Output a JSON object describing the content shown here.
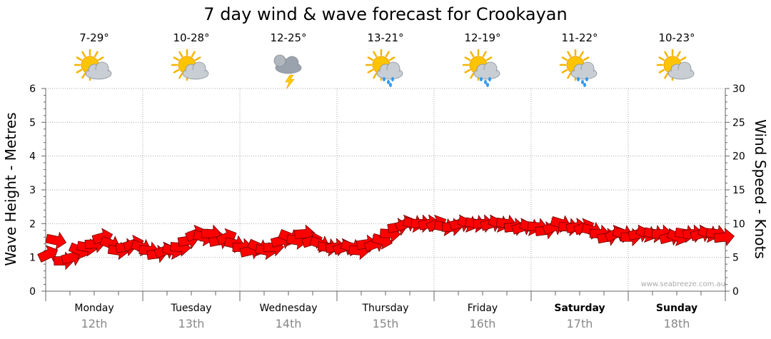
{
  "chart_data": {
    "type": "line",
    "title": "7 day wind & wave forecast for Crookayan",
    "ylabel_left": "Wave Height - Metres",
    "ylabel_right": "Wind Speed - Knots",
    "ylim_left": [
      0,
      6
    ],
    "ylim_right": [
      0,
      30
    ],
    "yticks_left": [
      "0",
      "1",
      "2",
      "3",
      "4",
      "5",
      "6"
    ],
    "yticks_right": [
      "0",
      "5",
      "10",
      "15",
      "20",
      "25",
      "30"
    ],
    "grid": true,
    "watermark": "www.seabreeze.com.au",
    "days": [
      {
        "day": "Monday",
        "date": "12th",
        "temp": "7-29°",
        "icon": "partly-cloudy-icon",
        "bold": false
      },
      {
        "day": "Tuesday",
        "date": "13th",
        "temp": "10-28°",
        "icon": "partly-cloudy-icon",
        "bold": false
      },
      {
        "day": "Wednesday",
        "date": "14th",
        "temp": "12-25°",
        "icon": "thunderstorm-icon",
        "bold": false
      },
      {
        "day": "Thursday",
        "date": "15th",
        "temp": "13-21°",
        "icon": "showers-icon",
        "bold": false
      },
      {
        "day": "Friday",
        "date": "16th",
        "temp": "12-19°",
        "icon": "showers-icon",
        "bold": false
      },
      {
        "day": "Saturday",
        "date": "17th",
        "temp": "11-22°",
        "icon": "showers-icon",
        "bold": true
      },
      {
        "day": "Sunday",
        "date": "18th",
        "temp": "10-23°",
        "icon": "partly-cloudy-icon",
        "bold": true
      }
    ],
    "series": [
      {
        "name": "Wind",
        "unit": "knots",
        "color": "#ff0000",
        "x_days": [
          0.0,
          0.08,
          0.16,
          0.24,
          0.32,
          0.4,
          0.48,
          0.56,
          0.64,
          0.72,
          0.8,
          0.88,
          0.96,
          1.04,
          1.12,
          1.2,
          1.28,
          1.36,
          1.44,
          1.52,
          1.6,
          1.68,
          1.76,
          1.84,
          1.92,
          2.0,
          2.08,
          2.16,
          2.24,
          2.32,
          2.4,
          2.48,
          2.56,
          2.64,
          2.72,
          2.8,
          2.88,
          2.96,
          3.04,
          3.12,
          3.2,
          3.28,
          3.36,
          3.44,
          3.52,
          3.6,
          3.68,
          3.76,
          3.84,
          3.92,
          4.0,
          4.08,
          4.16,
          4.24,
          4.32,
          4.4,
          4.48,
          4.56,
          4.64,
          4.72,
          4.8,
          4.88,
          4.96,
          5.04,
          5.12,
          5.2,
          5.28,
          5.36,
          5.44,
          5.52,
          5.6,
          5.68,
          5.76,
          5.84,
          5.92,
          6.0,
          6.08,
          6.16,
          6.24,
          6.32,
          6.4,
          6.48,
          6.56,
          6.64,
          6.72,
          6.8,
          6.88,
          6.96
        ],
        "speed_knots": [
          5.5,
          7.5,
          4.5,
          5,
          6,
          6.5,
          7,
          8,
          7,
          6,
          6.5,
          7,
          6.5,
          6,
          5.5,
          6,
          6,
          6.5,
          7.5,
          8.5,
          8,
          8.5,
          7.5,
          8,
          7,
          6.5,
          6,
          6.5,
          6,
          6.5,
          7.5,
          8,
          7.5,
          8.5,
          7.5,
          7,
          6.5,
          6.5,
          6.5,
          6.5,
          6,
          7,
          7,
          7.5,
          8.5,
          9.5,
          10,
          10,
          10,
          10,
          10,
          9.5,
          9.5,
          10,
          10,
          10,
          10,
          10,
          10,
          10,
          9.5,
          9.5,
          9.5,
          9.5,
          9,
          9.5,
          10,
          9.5,
          9.5,
          9.5,
          9,
          8.5,
          8,
          8.5,
          8.5,
          8,
          8.5,
          8.5,
          8.5,
          8.5,
          8,
          8,
          8.5,
          8.5,
          8.5,
          8.5,
          8.5,
          8
        ]
      }
    ]
  }
}
